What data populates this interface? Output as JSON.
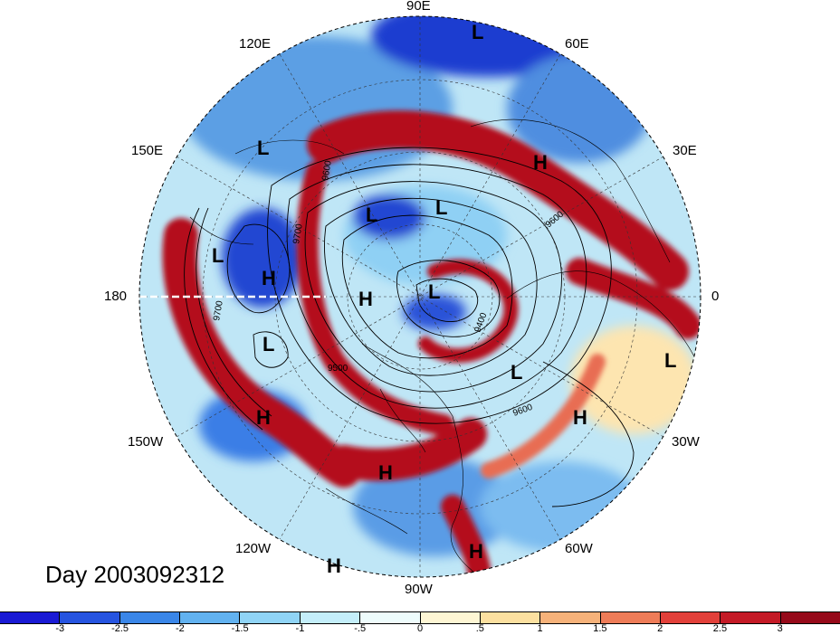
{
  "title_label": "Day 2003092312",
  "longitude_labels": {
    "deg90e": "90E",
    "deg60e": "60E",
    "deg120e": "120E",
    "deg150e": "150E",
    "deg30e": "30E",
    "deg180": "180",
    "deg0": "0",
    "deg150w": "150W",
    "deg30w": "30W",
    "deg120w": "120W",
    "deg60w": "60W",
    "deg90w": "90W"
  },
  "pressure_centers": [
    {
      "type": "L"
    },
    {
      "type": "L"
    },
    {
      "type": "L"
    },
    {
      "type": "L"
    },
    {
      "type": "L"
    },
    {
      "type": "L"
    },
    {
      "type": "L"
    },
    {
      "type": "L"
    },
    {
      "type": "L"
    },
    {
      "type": "H"
    },
    {
      "type": "H"
    },
    {
      "type": "H"
    },
    {
      "type": "H"
    },
    {
      "type": "H"
    },
    {
      "type": "H"
    },
    {
      "type": "H"
    },
    {
      "type": "H"
    }
  ],
  "contour_labels": [
    "9700",
    "9700",
    "9500",
    "9600",
    "9400",
    "9600",
    "9600"
  ],
  "colorbar": {
    "colors": [
      "#1a1ad4",
      "#2654e0",
      "#3a86e8",
      "#62b2f0",
      "#90d4f6",
      "#c4eefa",
      "#eefcfc",
      "#fef6d4",
      "#fce0a0",
      "#f6b27a",
      "#ee7c58",
      "#e2403a",
      "#c41a26",
      "#960a1a"
    ],
    "ticks": [
      "-3",
      "-2.5",
      "-2",
      "-1.5",
      "-1",
      "-.5",
      "0",
      ".5",
      "1",
      "1.5",
      "2",
      "2.5",
      "3"
    ]
  }
}
